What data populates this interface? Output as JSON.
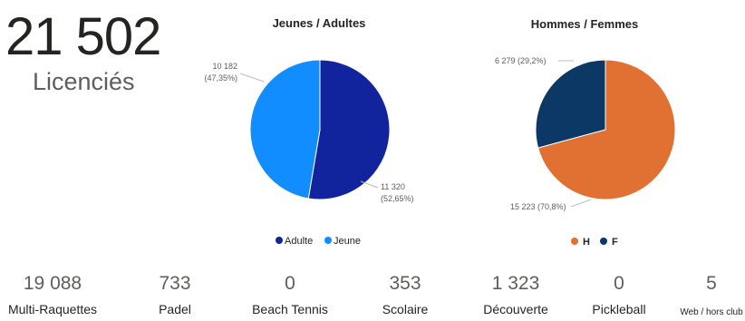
{
  "kpi": {
    "value": "21 502",
    "label": "Licenciés"
  },
  "chart_data": [
    {
      "type": "pie",
      "title": "Jeunes / Adultes",
      "slices": [
        {
          "name": "Adulte",
          "value": 11320,
          "label": "11 320",
          "pct": "(52,65%)",
          "color": "#12239e"
        },
        {
          "name": "Jeune",
          "value": 10182,
          "label": "10 182",
          "pct": "(47,35%)",
          "color": "#118dff"
        }
      ],
      "legend": "bottom"
    },
    {
      "type": "pie",
      "title": "Hommes / Femmes",
      "slices": [
        {
          "name": "H",
          "value": 15223,
          "label": "15 223 (70,8%)",
          "color": "#e07132"
        },
        {
          "name": "F",
          "value": 6279,
          "label": "6 279 (29,2%)",
          "color": "#0c3866"
        }
      ],
      "legend": "bottom"
    }
  ],
  "stats": [
    {
      "value": "19 088",
      "label": "Multi-Raquettes"
    },
    {
      "value": "733",
      "label": "Padel"
    },
    {
      "value": "0",
      "label": "Beach Tennis"
    },
    {
      "value": "353",
      "label": "Scolaire"
    },
    {
      "value": "1 323",
      "label": "Découverte"
    },
    {
      "value": "0",
      "label": "Pickleball"
    },
    {
      "value": "5",
      "label": "Web / hors club"
    }
  ]
}
